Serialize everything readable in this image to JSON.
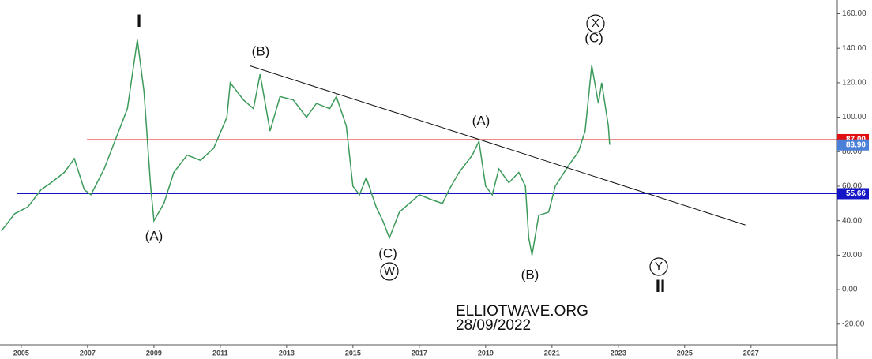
{
  "chart_data": {
    "type": "line",
    "x": [
      2004.4,
      2004.8,
      2005.2,
      2005.6,
      2005.9,
      2006.3,
      2006.6,
      2006.9,
      2007.1,
      2007.5,
      2007.9,
      2008.2,
      2008.5,
      2008.7,
      2008.9,
      2009.0,
      2009.3,
      2009.6,
      2010.0,
      2010.4,
      2010.8,
      2011.2,
      2011.3,
      2011.7,
      2012.0,
      2012.2,
      2012.5,
      2012.8,
      2013.2,
      2013.6,
      2013.9,
      2014.3,
      2014.5,
      2014.8,
      2015.0,
      2015.2,
      2015.4,
      2015.7,
      2015.9,
      2016.1,
      2016.4,
      2016.7,
      2017.0,
      2017.4,
      2017.7,
      2017.9,
      2018.2,
      2018.6,
      2018.8,
      2019.0,
      2019.2,
      2019.4,
      2019.7,
      2020.0,
      2020.2,
      2020.3,
      2020.4,
      2020.6,
      2020.9,
      2021.1,
      2021.5,
      2021.8,
      2022.0,
      2022.2,
      2022.4,
      2022.5,
      2022.7,
      2022.74
    ],
    "series": [
      {
        "color": "#3c9a5a",
        "values": [
          34,
          44,
          48,
          58,
          62,
          68,
          76,
          58,
          55,
          70,
          90,
          105,
          145,
          115,
          60,
          40,
          50,
          68,
          78,
          75,
          82,
          100,
          120,
          110,
          105,
          125,
          92,
          112,
          110,
          100,
          108,
          105,
          112,
          95,
          60,
          55,
          65,
          48,
          40,
          30,
          45,
          50,
          55,
          52,
          50,
          58,
          68,
          78,
          86,
          60,
          55,
          70,
          62,
          68,
          60,
          30,
          20,
          43,
          45,
          60,
          72,
          80,
          92,
          130,
          108,
          120,
          95,
          84
        ]
      }
    ],
    "xlim": [
      2004.36,
      2029.6
    ],
    "ylim": [
      -32,
      168
    ],
    "xticks": [
      2005,
      2007,
      2009,
      2011,
      2013,
      2015,
      2017,
      2019,
      2021,
      2023,
      2025,
      2027
    ],
    "yticks": [
      {
        "value": -20,
        "label": "-20.00"
      },
      {
        "value": 0,
        "label": "0.00"
      },
      {
        "value": 20,
        "label": "20.00"
      },
      {
        "value": 40,
        "label": "40.00"
      },
      {
        "value": 60,
        "label": "60.00"
      },
      {
        "value": 80,
        "label": "80.00"
      },
      {
        "value": 100,
        "label": "100.00"
      },
      {
        "value": 120,
        "label": "120.00"
      },
      {
        "value": 140,
        "label": "140.00"
      },
      {
        "value": 160,
        "label": "160.00"
      }
    ],
    "levels": [
      {
        "value": 87,
        "label": "87.00",
        "color": "#e01010"
      },
      {
        "value": 55.66,
        "label": "55.66",
        "color": "#1515c8"
      }
    ],
    "last_price": {
      "value": 83.9,
      "label": "83.90",
      "color": "#4a80d8"
    },
    "trendline": {
      "x": [
        2011.9,
        2026.83
      ],
      "y": [
        129.8,
        37.5
      ]
    },
    "annotations": [
      "I",
      "(A)",
      "(B)",
      "(C)",
      "W",
      "(A)",
      "(B)",
      "X",
      "(C)",
      "Y",
      "II",
      "ELLIOTWAVE.ORG",
      "28/09/2022"
    ]
  }
}
